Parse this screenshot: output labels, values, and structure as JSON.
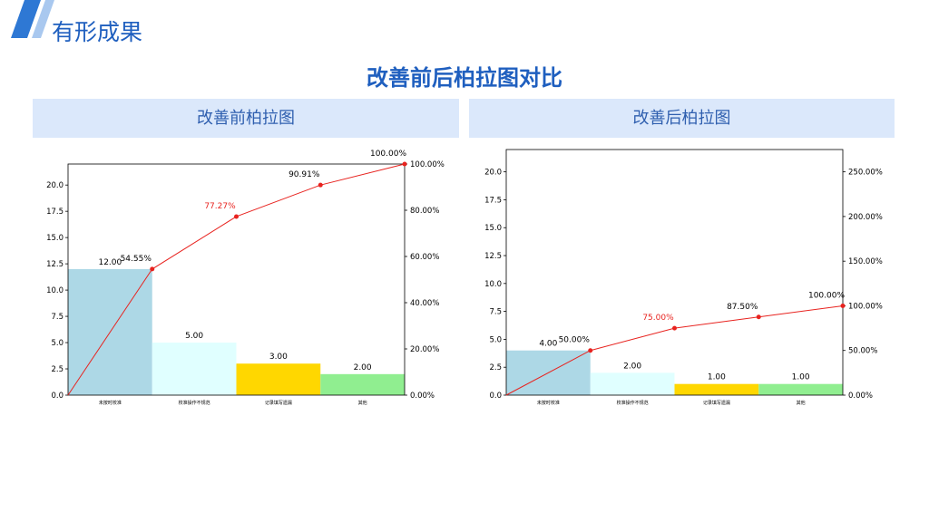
{
  "slide": {
    "title": "有形成果",
    "main_title": "改善前后柏拉图对比"
  },
  "panels": [
    {
      "header": "改善前柏拉图"
    },
    {
      "header": "改善后柏拉图"
    }
  ],
  "colors": {
    "accent": "#1f5fbf",
    "header_bg": "#dbe8fb",
    "cumulative_line": "#e8231f",
    "bar_colors": [
      "#add8e6",
      "#e0ffff",
      "#ffd700",
      "#90ee90"
    ]
  },
  "chart_data": [
    {
      "type": "bar",
      "categories": [
        "未按时校准",
        "校准操作不规范",
        "记录填写遗漏",
        "其他"
      ],
      "values": [
        12,
        5,
        3,
        2
      ],
      "value_labels": [
        "12.00",
        "5.00",
        "3.00",
        "2.00"
      ],
      "cumulative_pct": [
        54.55,
        77.27,
        90.91,
        100.0
      ],
      "cumulative_labels": [
        "54.55%",
        "77.27%",
        "90.91%",
        "100.00%"
      ],
      "ylim": [
        0,
        22
      ],
      "yticks": [
        0,
        2.5,
        5,
        7.5,
        10,
        12.5,
        15,
        17.5,
        20
      ],
      "ytick_labels": [
        "0.0",
        "2.5",
        "5.0",
        "7.5",
        "10.0",
        "12.5",
        "15.0",
        "17.5",
        "20.0"
      ],
      "y2lim": [
        0,
        100
      ],
      "y2ticks": [
        0,
        20,
        40,
        60,
        80,
        100
      ],
      "y2tick_labels": [
        "0.00%",
        "20.00%",
        "40.00%",
        "60.00%",
        "80.00%",
        "100.00%"
      ],
      "line_start": [
        0,
        0
      ],
      "grid": false,
      "legend": "none"
    },
    {
      "type": "bar",
      "categories": [
        "未按时校准",
        "校准操作不规范",
        "记录填写遗漏",
        "其他"
      ],
      "values": [
        4,
        2,
        1,
        1
      ],
      "value_labels": [
        "4.00",
        "2.00",
        "1.00",
        "1.00"
      ],
      "cumulative_pct": [
        50.0,
        75.0,
        87.5,
        100.0
      ],
      "cumulative_labels": [
        "50.00%",
        "75.00%",
        "87.50%",
        "100.00%"
      ],
      "ylim": [
        0,
        22
      ],
      "yticks": [
        0,
        2.5,
        5,
        7.5,
        10,
        12.5,
        15,
        17.5,
        20
      ],
      "ytick_labels": [
        "0.0",
        "2.5",
        "5.0",
        "7.5",
        "10.0",
        "12.5",
        "15.0",
        "17.5",
        "20.0"
      ],
      "y2lim": [
        0,
        275
      ],
      "y2ticks": [
        0,
        50,
        100,
        150,
        200,
        250
      ],
      "y2tick_labels": [
        "0.00%",
        "50.00%",
        "100.00%",
        "150.00%",
        "200.00%",
        "250.00%"
      ],
      "line_start": [
        0,
        0
      ],
      "grid": false,
      "legend": "none"
    }
  ]
}
